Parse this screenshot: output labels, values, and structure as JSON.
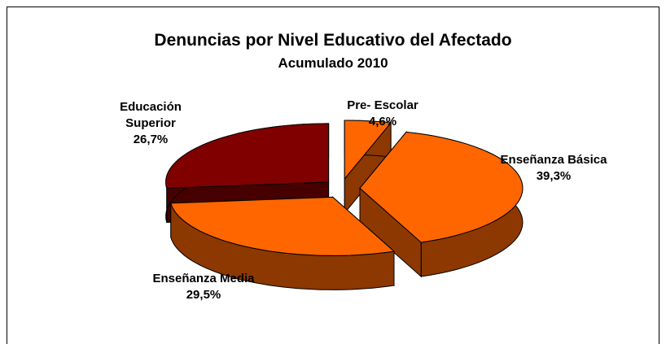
{
  "chart_data": {
    "type": "pie",
    "title": "Denuncias por Nivel Educativo del Afectado",
    "subtitle": "Acumulado 2010",
    "categories": [
      "Pre- Escolar",
      "Enseñanza Básica",
      "Enseñanza Media",
      "Educación Superior"
    ],
    "values": [
      4.6,
      39.3,
      29.5,
      26.7
    ],
    "value_labels": [
      "4,6%",
      "39,3%",
      "29,5%",
      "26,7%"
    ],
    "colors": [
      "#ff6600",
      "#ff6600",
      "#ff6600",
      "#800000"
    ]
  }
}
